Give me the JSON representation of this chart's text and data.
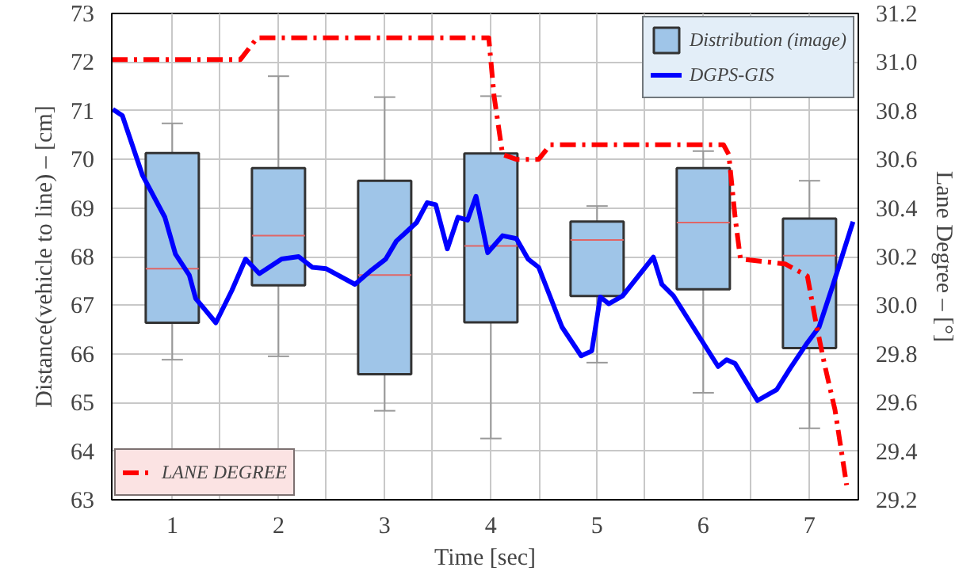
{
  "chart_data": {
    "type": "box",
    "xlabel": "Time [sec]",
    "ylabel": "Distance(vehicle to line) – [cm]",
    "y2label": "Lane Degree – [°]",
    "xlim": [
      0.43,
      7.46
    ],
    "xticks": [
      1,
      {
        "value": 1.44,
        "label": null
      },
      2,
      {
        "value": 2.45,
        "label": null
      },
      3,
      {
        "value": 3.45,
        "label": null
      },
      4,
      {
        "value": 4.46,
        "label": null
      },
      5,
      {
        "value": 5.45,
        "label": null
      },
      6,
      {
        "value": 6.44,
        "label": null
      },
      7
    ],
    "ylim": [
      63,
      73
    ],
    "yticks": [
      63,
      64,
      65,
      66,
      67,
      68,
      69,
      70,
      71,
      72,
      73
    ],
    "y2lim": [
      29.2,
      31.2
    ],
    "y2ticks": [
      29.2,
      29.4,
      29.6,
      29.8,
      {
        "value": 30,
        "label": "30.0"
      },
      30.2,
      30.4,
      30.6,
      30.8,
      {
        "value": 31,
        "label": "31.0"
      },
      31.2
    ],
    "grid": true,
    "legend": "top right",
    "series": [
      {
        "name": "Distribution (image)",
        "color": "#9fc5e8",
        "x": [
          1,
          2,
          3,
          4,
          5,
          6,
          7
        ],
        "boxes": [
          {
            "low": 65.88,
            "q1": 66.64,
            "median": 67.75,
            "q3": 70.13,
            "high": 70.74
          },
          {
            "low": 65.95,
            "q1": 67.41,
            "median": 68.43,
            "q3": 69.82,
            "high": 71.71
          },
          {
            "low": 64.83,
            "q1": 65.58,
            "median": 67.62,
            "q3": 69.56,
            "high": 71.28
          },
          {
            "low": 64.26,
            "q1": 66.65,
            "median": 68.22,
            "q3": 70.12,
            "high": 71.3
          },
          {
            "low": 65.82,
            "q1": 67.19,
            "median": 68.34,
            "q3": 68.72,
            "high": 69.04
          },
          {
            "low": 65.2,
            "q1": 67.33,
            "median": 68.7,
            "q3": 69.82,
            "high": 70.17
          },
          {
            "low": 64.47,
            "q1": 66.12,
            "median": 68.02,
            "q3": 68.78,
            "high": 69.56
          }
        ]
      },
      {
        "name": "DGPS-GIS",
        "type": "line",
        "color": "#0000ff",
        "line_style": "solid",
        "x": [
          0.44,
          0.53,
          0.72,
          0.93,
          1.03,
          1.16,
          1.22,
          1.41,
          1.56,
          1.69,
          1.82,
          2.03,
          2.19,
          2.32,
          2.45,
          2.72,
          2.88,
          3.01,
          3.11,
          3.3,
          3.4,
          3.48,
          3.59,
          3.69,
          3.78,
          3.86,
          3.97,
          4.11,
          4.24,
          4.35,
          4.45,
          4.67,
          4.85,
          4.95,
          5.03,
          5.11,
          5.24,
          5.53,
          5.61,
          5.72,
          6.14,
          6.22,
          6.3,
          6.51,
          6.69,
          6.82,
          6.98,
          7.09,
          7.22,
          7.41
        ],
        "values": [
          71.03,
          70.9,
          69.67,
          68.81,
          68.05,
          67.62,
          67.14,
          66.64,
          67.3,
          67.95,
          67.65,
          67.95,
          68.0,
          67.78,
          67.75,
          67.43,
          67.73,
          67.95,
          68.32,
          68.7,
          69.11,
          69.07,
          68.16,
          68.81,
          68.75,
          69.24,
          68.08,
          68.43,
          68.37,
          67.95,
          67.78,
          66.55,
          65.96,
          66.06,
          67.17,
          67.03,
          67.19,
          67.99,
          67.43,
          67.19,
          65.74,
          65.88,
          65.8,
          65.04,
          65.26,
          65.71,
          66.23,
          66.55,
          67.41,
          68.72
        ]
      },
      {
        "name": "LANE DEGREE",
        "type": "line",
        "axis": "y2",
        "color": "#ff0000",
        "line_style": "dashdot",
        "x": [
          0.43,
          1.64,
          1.8,
          3.98,
          4.03,
          4.11,
          4.24,
          4.45,
          4.56,
          6.19,
          6.24,
          6.3,
          6.35,
          6.77,
          6.98,
          7.06,
          7.14,
          7.24,
          7.35
        ],
        "values": [
          31.01,
          31.01,
          31.1,
          31.1,
          30.86,
          30.62,
          30.6,
          30.6,
          30.66,
          30.66,
          30.62,
          30.36,
          30.19,
          30.17,
          30.12,
          29.93,
          29.76,
          29.57,
          29.26
        ]
      }
    ]
  }
}
